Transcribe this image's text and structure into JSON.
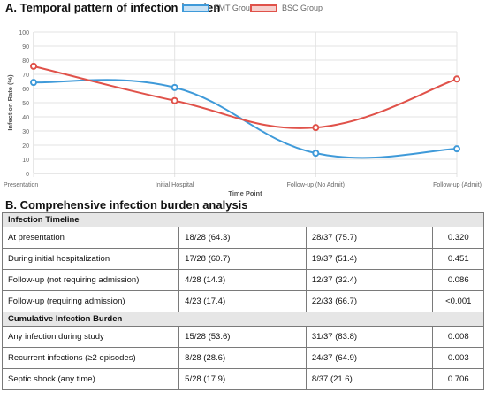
{
  "chart": {
    "title": "A. Temporal pattern of infection burden"
  },
  "chart_data": {
    "type": "line",
    "title": "A. Temporal pattern of infection burden",
    "xlabel": "Time Point",
    "ylabel": "Infection Rate (%)",
    "categories": [
      "Presentation",
      "Initial Hospital",
      "Follow-up (No Admit)",
      "Follow-up (Admit)"
    ],
    "ylim": [
      0,
      100
    ],
    "yticks": [
      0,
      10,
      20,
      30,
      40,
      50,
      60,
      70,
      80,
      90,
      100
    ],
    "grid": true,
    "legend_position": "top",
    "series": [
      {
        "name": "FMT Group",
        "values": [
          64.3,
          60.7,
          14.3,
          17.4
        ],
        "color": "#3f9ad9"
      },
      {
        "name": "BSC Group",
        "values": [
          75.7,
          51.4,
          32.4,
          66.7
        ],
        "color": "#e0524a"
      }
    ]
  },
  "table": {
    "title": "B. Comprehensive infection burden analysis",
    "sections": [
      {
        "heading": "Infection Timeline",
        "rows": [
          [
            "At presentation",
            "18/28 (64.3)",
            "28/37 (75.7)",
            "0.320"
          ],
          [
            "During initial hospitalization",
            "17/28 (60.7)",
            "19/37 (51.4)",
            "0.451"
          ],
          [
            "Follow-up (not requiring admission)",
            "4/28 (14.3)",
            "12/37 (32.4)",
            "0.086"
          ],
          [
            "Follow-up (requiring admission)",
            "4/23 (17.4)",
            "22/33 (66.7)",
            "<0.001"
          ]
        ]
      },
      {
        "heading": "Cumulative Infection Burden",
        "rows": [
          [
            "Any infection during study",
            "15/28 (53.6)",
            "31/37 (83.8)",
            "0.008"
          ],
          [
            "Recurrent infections (≥2 episodes)",
            "8/28 (28.6)",
            "24/37 (64.9)",
            "0.003"
          ],
          [
            "Septic shock (any time)",
            "5/28 (17.9)",
            "8/37 (21.6)",
            "0.706"
          ]
        ]
      }
    ]
  }
}
